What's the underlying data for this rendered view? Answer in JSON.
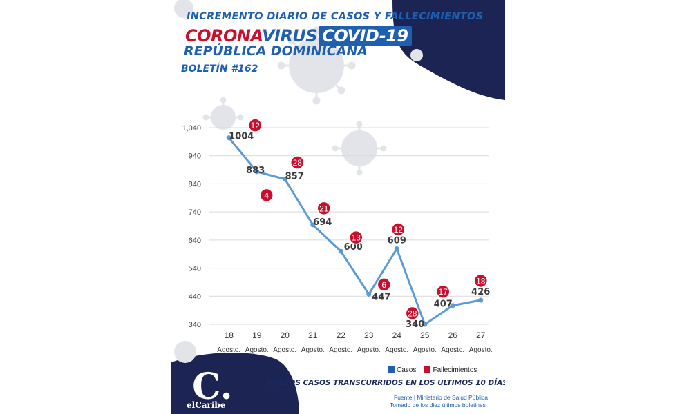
{
  "header": {
    "line1": "INCREMENTO DIARIO DE CASOS Y FALLECIMIENTOS",
    "corona": "CORONA",
    "virus": "VIRUS",
    "covid": "COVID-19",
    "line3": "REPÚBLICA DOMINICANA",
    "boletin": "BOLETÍN #162"
  },
  "colors": {
    "navy": "#1c2454",
    "blue": "#1f5fb0",
    "line": "#5b9bd5",
    "red": "#c8102e"
  },
  "chart_data": {
    "type": "line",
    "categories": [
      "18",
      "19",
      "20",
      "21",
      "22",
      "23",
      "24",
      "25",
      "26",
      "27"
    ],
    "category_sublabel": "Agosto.",
    "ytick_labels": [
      "1,040",
      "940",
      "840",
      "740",
      "640",
      "540",
      "440",
      "340"
    ],
    "ytick_values": [
      1040,
      940,
      840,
      740,
      640,
      540,
      440,
      340
    ],
    "ylim": [
      340,
      1040
    ],
    "grid": true,
    "series": [
      {
        "name": "Casos",
        "values": [
          1004,
          883,
          857,
          694,
          600,
          447,
          609,
          340,
          407,
          426
        ]
      },
      {
        "name": "Fallecimientos",
        "values": [
          12,
          4,
          28,
          21,
          13,
          6,
          12,
          28,
          17,
          18
        ]
      }
    ],
    "legend_position": "bottom-right"
  },
  "legend": {
    "casos": "Casos",
    "fallecimientos": "Fallecimientos"
  },
  "subtitle": "NUEVOS CASOS TRANSCURRIDOS EN LOS ULTIMOS 10 DÍAS",
  "source": {
    "line1": "Fuente  |  Ministerio de Salud Pública",
    "line2": "Tomado de  los diez últimos boletines"
  },
  "logo": {
    "mark": "C.",
    "name": "elCaribe"
  }
}
